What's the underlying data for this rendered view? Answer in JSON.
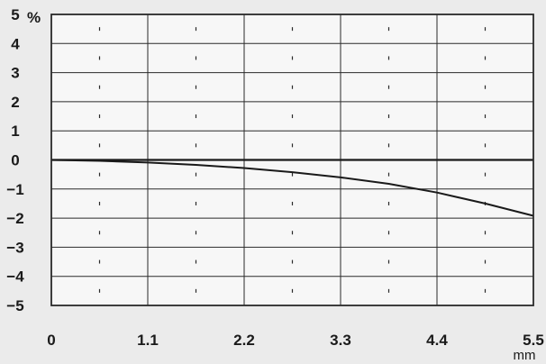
{
  "chart_data": {
    "type": "line",
    "title": "",
    "xlabel": "mm",
    "ylabel": "%",
    "xlim": [
      0,
      5.5
    ],
    "ylim": [
      -5,
      5
    ],
    "grid": true,
    "x_major_ticks": [
      0,
      1.1,
      2.2,
      3.3,
      4.4,
      5.5
    ],
    "x_tick_labels": [
      "0",
      "1.1",
      "2.2",
      "3.3",
      "4.4",
      "5.5"
    ],
    "x_minor_ticks": [
      0.55,
      1.65,
      2.75,
      3.85,
      4.95
    ],
    "y_ticks": [
      -5,
      -4,
      -3,
      -2,
      -1,
      0,
      1,
      2,
      3,
      4,
      5
    ],
    "y_tick_labels": [
      "−5",
      "−4",
      "−3",
      "−2",
      "−1",
      "0",
      "1",
      "2",
      "3",
      "4",
      "5"
    ],
    "series": [
      {
        "x": [
          0,
          0.55,
          1.1,
          1.65,
          2.2,
          2.75,
          3.3,
          3.85,
          4.4,
          4.95,
          5.5
        ],
        "values": [
          0,
          -0.03,
          -0.09,
          -0.17,
          -0.28,
          -0.42,
          -0.6,
          -0.82,
          -1.12,
          -1.5,
          -1.92
        ]
      }
    ],
    "colors": {
      "line": "#1a1a1a",
      "grid": "#2a2a2a",
      "plot_background": "#f7f7f7"
    }
  }
}
